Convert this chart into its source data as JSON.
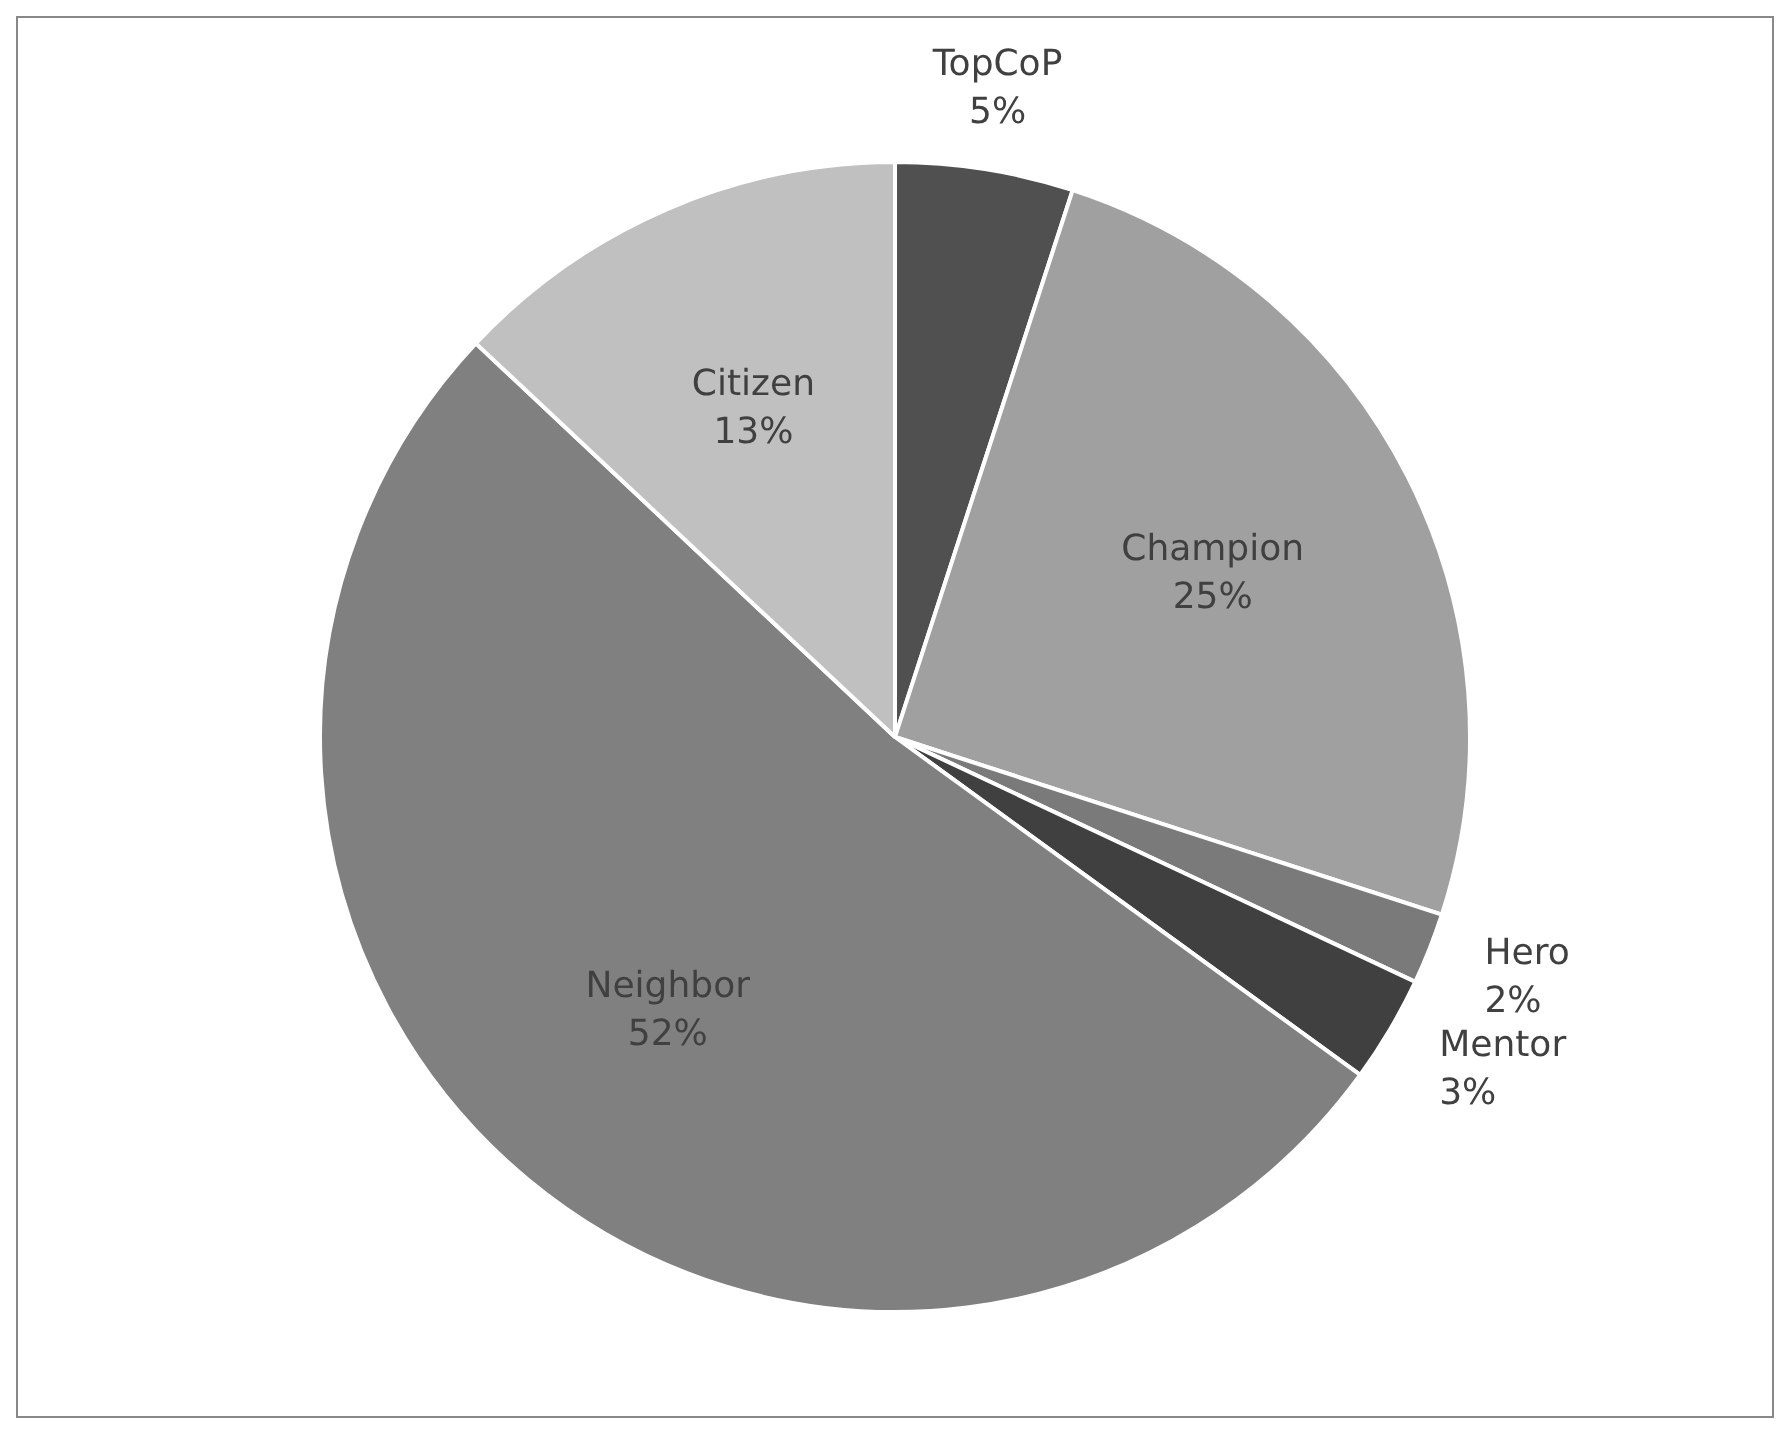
{
  "chart_data": {
    "type": "pie",
    "categories": [
      "TopCoP",
      "Champion",
      "Hero",
      "Mentor",
      "Neighbor",
      "Citizen"
    ],
    "values": [
      5,
      25,
      2,
      3,
      52,
      13
    ],
    "colors": [
      "#505050",
      "#a0a0a0",
      "#7a7a7a",
      "#404040",
      "#808080",
      "#c0c0c0"
    ],
    "value_labels": [
      "5%",
      "25%",
      "2%",
      "3%",
      "52%",
      "13%"
    ],
    "legend": false
  }
}
